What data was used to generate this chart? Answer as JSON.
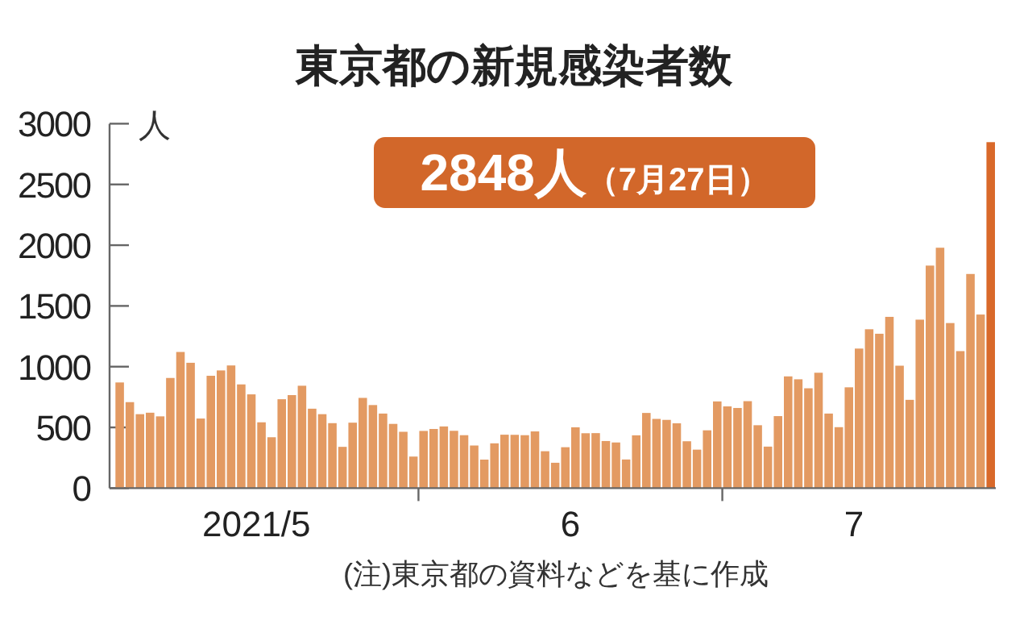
{
  "chart_data": {
    "type": "bar",
    "title": "東京都の新規感染者数",
    "ylabel": "人",
    "x": [
      "2021-05-02",
      "2021-05-03",
      "2021-05-04",
      "2021-05-05",
      "2021-05-06",
      "2021-05-07",
      "2021-05-08",
      "2021-05-09",
      "2021-05-10",
      "2021-05-11",
      "2021-05-12",
      "2021-05-13",
      "2021-05-14",
      "2021-05-15",
      "2021-05-16",
      "2021-05-17",
      "2021-05-18",
      "2021-05-19",
      "2021-05-20",
      "2021-05-21",
      "2021-05-22",
      "2021-05-23",
      "2021-05-24",
      "2021-05-25",
      "2021-05-26",
      "2021-05-27",
      "2021-05-28",
      "2021-05-29",
      "2021-05-30",
      "2021-05-31",
      "2021-06-01",
      "2021-06-02",
      "2021-06-03",
      "2021-06-04",
      "2021-06-05",
      "2021-06-06",
      "2021-06-07",
      "2021-06-08",
      "2021-06-09",
      "2021-06-10",
      "2021-06-11",
      "2021-06-12",
      "2021-06-13",
      "2021-06-14",
      "2021-06-15",
      "2021-06-16",
      "2021-06-17",
      "2021-06-18",
      "2021-06-19",
      "2021-06-20",
      "2021-06-21",
      "2021-06-22",
      "2021-06-23",
      "2021-06-24",
      "2021-06-25",
      "2021-06-26",
      "2021-06-27",
      "2021-06-28",
      "2021-06-29",
      "2021-06-30",
      "2021-07-01",
      "2021-07-02",
      "2021-07-03",
      "2021-07-04",
      "2021-07-05",
      "2021-07-06",
      "2021-07-07",
      "2021-07-08",
      "2021-07-09",
      "2021-07-10",
      "2021-07-11",
      "2021-07-12",
      "2021-07-13",
      "2021-07-14",
      "2021-07-15",
      "2021-07-16",
      "2021-07-17",
      "2021-07-18",
      "2021-07-19",
      "2021-07-20",
      "2021-07-21",
      "2021-07-22",
      "2021-07-23",
      "2021-07-24",
      "2021-07-25",
      "2021-07-26",
      "2021-07-27"
    ],
    "values": [
      870,
      708,
      609,
      621,
      591,
      907,
      1121,
      1032,
      573,
      925,
      969,
      1010,
      854,
      772,
      542,
      419,
      732,
      766,
      843,
      654,
      609,
      535,
      340,
      539,
      743,
      684,
      614,
      529,
      464,
      260,
      471,
      487,
      508,
      472,
      436,
      351,
      235,
      369,
      440,
      439,
      436,
      467,
      304,
      209,
      337,
      501,
      452,
      453,
      388,
      376,
      236,
      435,
      619,
      570,
      562,
      534,
      386,
      317,
      476,
      714,
      673,
      660,
      716,
      518,
      342,
      593,
      920,
      896,
      822,
      950,
      614,
      502,
      830,
      1149,
      1308,
      1271,
      1410,
      1008,
      727,
      1387,
      1832,
      1979,
      1359,
      1128,
      1763,
      1429,
      2848
    ],
    "colors": [
      "#e39a62",
      "#e39a62",
      "#e39a62",
      "#e39a62",
      "#e39a62",
      "#e39a62",
      "#e39a62",
      "#e39a62",
      "#e39a62",
      "#e39a62",
      "#e39a62",
      "#e39a62",
      "#e39a62",
      "#e39a62",
      "#e39a62",
      "#e39a62",
      "#e39a62",
      "#e39a62",
      "#e39a62",
      "#e39a62",
      "#e39a62",
      "#e39a62",
      "#e39a62",
      "#e39a62",
      "#e39a62",
      "#e39a62",
      "#e39a62",
      "#e39a62",
      "#e39a62",
      "#e39a62",
      "#e39a62",
      "#e39a62",
      "#e39a62",
      "#e39a62",
      "#e39a62",
      "#e39a62",
      "#e39a62",
      "#e39a62",
      "#e39a62",
      "#e39a62",
      "#e39a62",
      "#e39a62",
      "#e39a62",
      "#e39a62",
      "#e39a62",
      "#e39a62",
      "#e39a62",
      "#e39a62",
      "#e39a62",
      "#e39a62",
      "#e39a62",
      "#e39a62",
      "#e39a62",
      "#e39a62",
      "#e39a62",
      "#e39a62",
      "#e39a62",
      "#e39a62",
      "#e39a62",
      "#e39a62",
      "#e39a62",
      "#e39a62",
      "#e39a62",
      "#e39a62",
      "#e39a62",
      "#e39a62",
      "#e39a62",
      "#e39a62",
      "#e39a62",
      "#e39a62",
      "#e39a62",
      "#e39a62",
      "#e39a62",
      "#e39a62",
      "#e39a62",
      "#e39a62",
      "#e39a62",
      "#e39a62",
      "#e39a62",
      "#e39a62",
      "#e39a62",
      "#e39a62",
      "#e39a62",
      "#e39a62",
      "#e39a62",
      "#e39a62",
      "#d9692a"
    ],
    "xlim": [
      "2021-05-01T12:00",
      "2021-07-28"
    ],
    "xticks": [
      {
        "value": "2021-05-16",
        "label": "2021/5"
      },
      {
        "value": "2021-06-01",
        "label": null
      },
      {
        "value": "2021-06-16",
        "label": "6"
      },
      {
        "value": "2021-07-01",
        "label": null
      },
      {
        "value": "2021-07-14",
        "label": "7"
      }
    ],
    "ylim": [
      0,
      3000
    ],
    "yticks": [
      0,
      500,
      1000,
      1500,
      2000,
      2500,
      3000
    ],
    "annotations": [
      "2848人（7月27日）",
      "(注)東京都の資料などを基に作成"
    ]
  }
}
